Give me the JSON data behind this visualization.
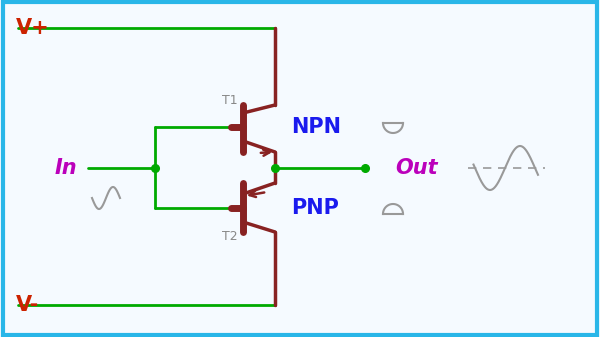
{
  "bg_color": "#f5faff",
  "border_color": "#29b6e8",
  "green": "#00aa00",
  "red_label": "#cc2200",
  "dark_red": "#882222",
  "blue": "#1a1aee",
  "purple": "#bb00bb",
  "gray": "#999999",
  "dark_gray": "#888888",
  "vplus_label": "V+",
  "vminus_label": "V-",
  "in_label": "In",
  "out_label": "Out",
  "npn_label": "NPN",
  "pnp_label": "PNP",
  "t1_label": "T1",
  "t2_label": "T2",
  "figw": 6.0,
  "figh": 3.37,
  "dpi": 100
}
